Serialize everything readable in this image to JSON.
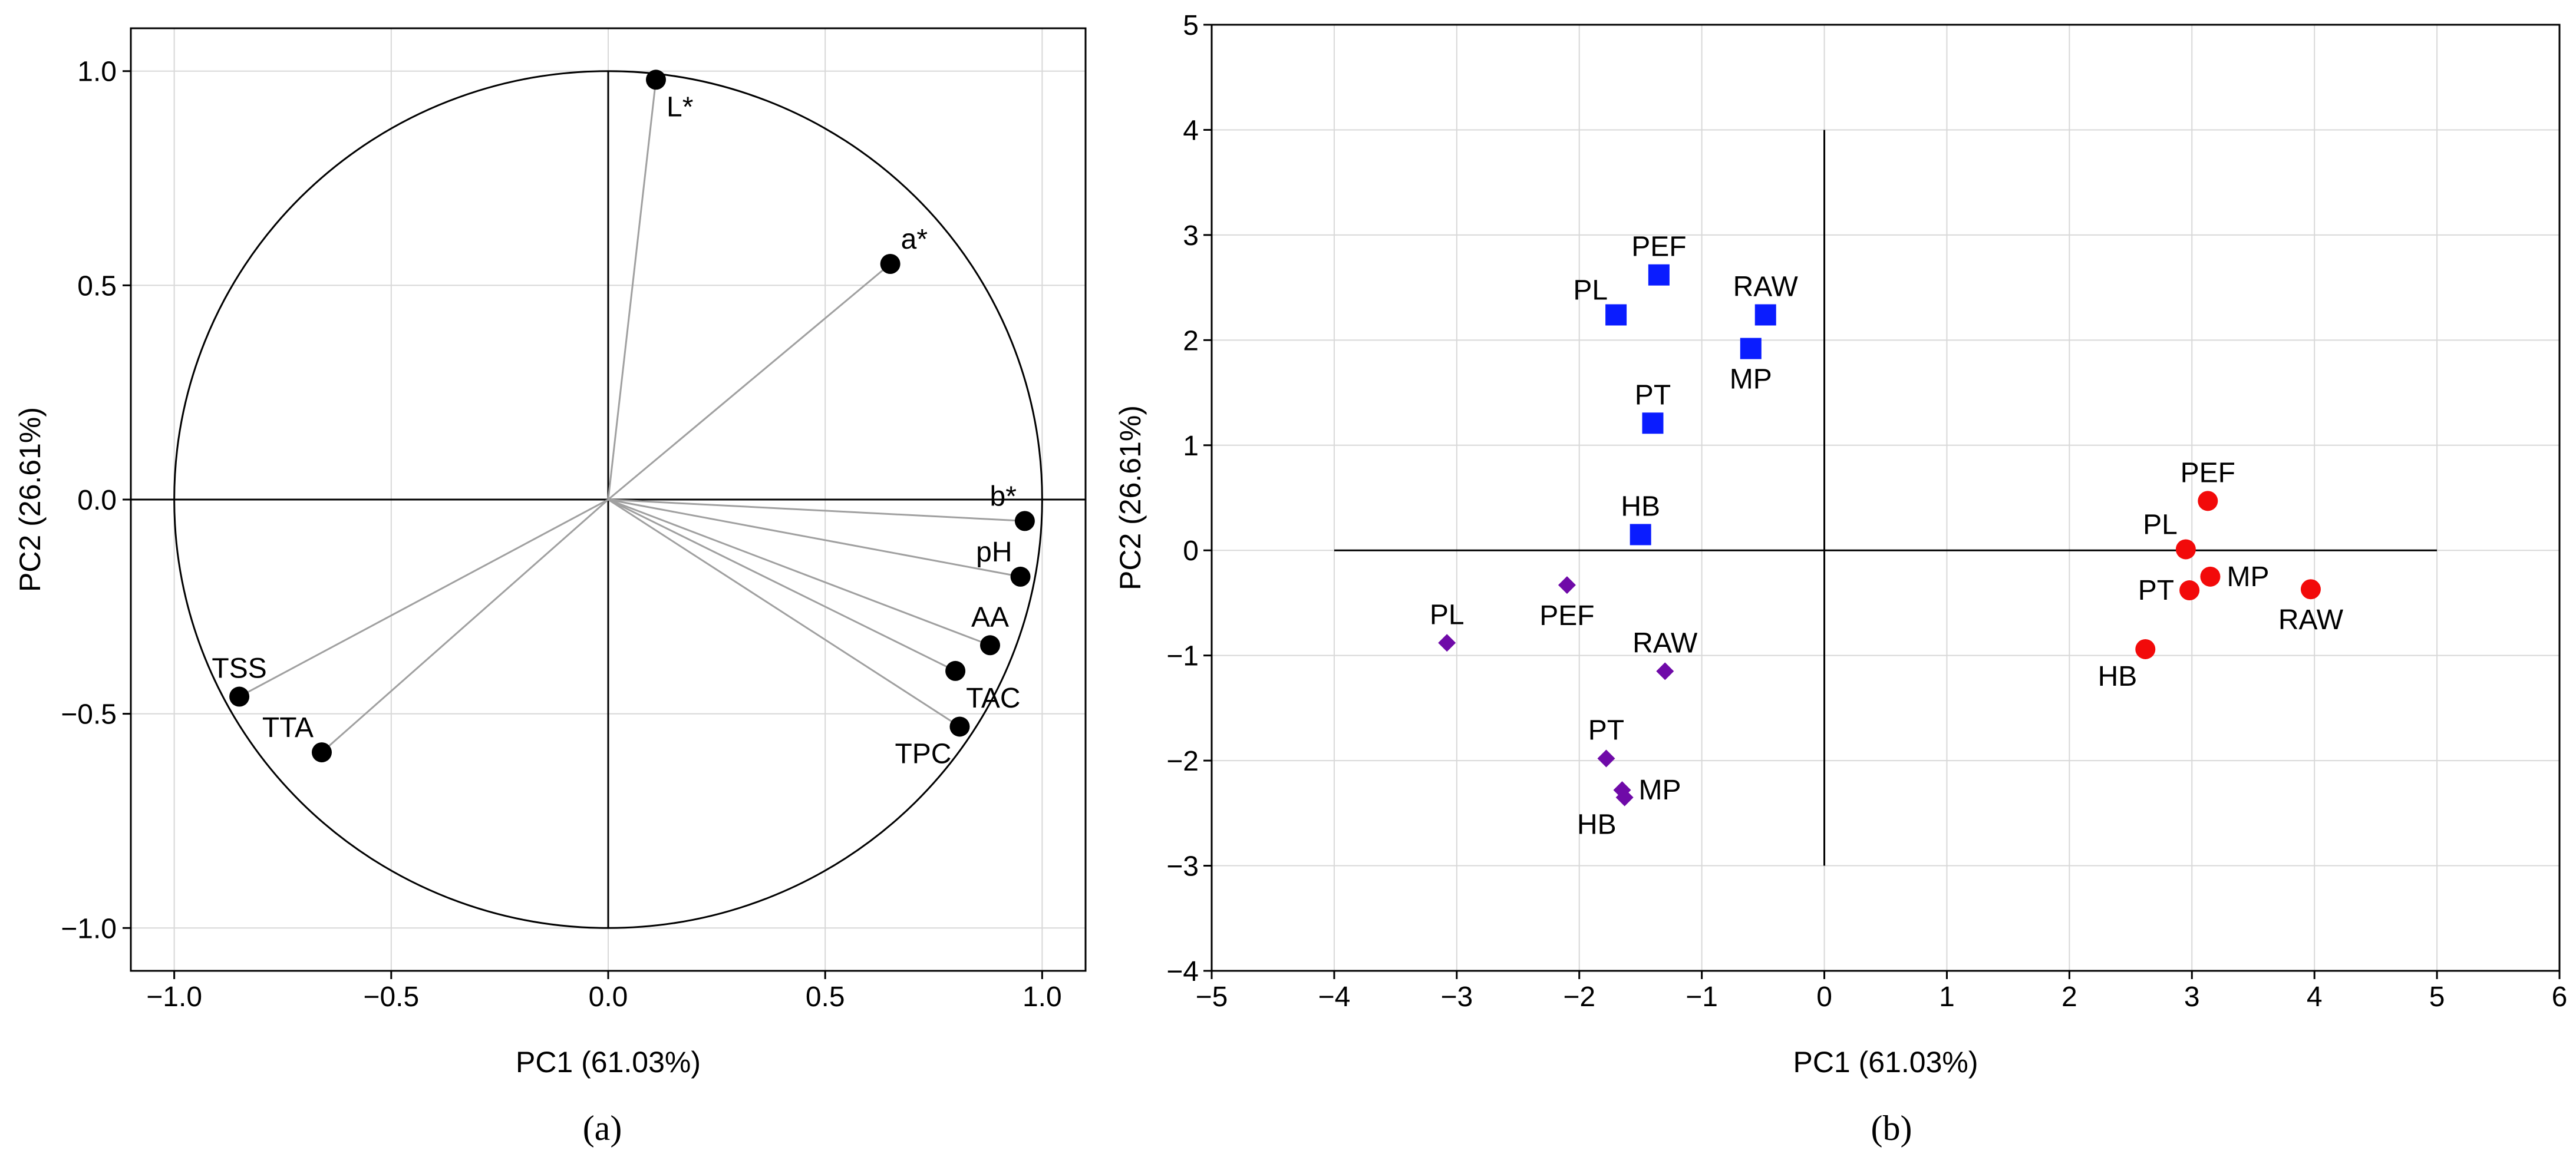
{
  "colors": {
    "frame": "#000000",
    "grid": "#d8d8d8",
    "loading_line": "#a0a0a0",
    "point_black": "#000000",
    "blue": "#0a1cff",
    "purple": "#6f0aa8",
    "red": "#f20a0a"
  },
  "chart_data": [
    {
      "type": "scatter",
      "subtype": "pca-loadings-correlation-circle",
      "panel_label": "(a)",
      "xlabel": "PC1 (61.03%)",
      "ylabel": "PC2 (26.61%)",
      "xlim": [
        -1.1,
        1.1
      ],
      "ylim": [
        -1.1,
        1.1
      ],
      "xticks": [
        -1.0,
        -0.5,
        0.0,
        0.5,
        1.0
      ],
      "yticks": [
        -1.0,
        -0.5,
        0.0,
        0.5,
        1.0
      ],
      "xtick_labels": [
        "−1.0",
        "−0.5",
        "0.0",
        "0.5",
        "1.0"
      ],
      "ytick_labels": [
        "−1.0",
        "−0.5",
        "0.0",
        "0.5",
        "1.0"
      ],
      "grid": true,
      "unit_circle": true,
      "points": [
        {
          "label": "L*",
          "x": 0.11,
          "y": 0.98,
          "label_pos": "bottom-right"
        },
        {
          "label": "a*",
          "x": 0.65,
          "y": 0.55,
          "label_pos": "top-right"
        },
        {
          "label": "b*",
          "x": 0.96,
          "y": -0.05,
          "label_pos": "top-left"
        },
        {
          "label": "pH",
          "x": 0.95,
          "y": -0.18,
          "label_pos": "top-left"
        },
        {
          "label": "AA",
          "x": 0.88,
          "y": -0.34,
          "label_pos": "top"
        },
        {
          "label": "TAC",
          "x": 0.8,
          "y": -0.4,
          "label_pos": "bottom-right"
        },
        {
          "label": "TPC",
          "x": 0.81,
          "y": -0.53,
          "label_pos": "bottom-left"
        },
        {
          "label": "TSS",
          "x": -0.85,
          "y": -0.46,
          "label_pos": "top"
        },
        {
          "label": "TTA",
          "x": -0.66,
          "y": -0.59,
          "label_pos": "top-left"
        }
      ]
    },
    {
      "type": "scatter",
      "subtype": "pca-scores",
      "panel_label": "(b)",
      "xlabel": "PC1 (61.03%)",
      "ylabel": "PC2 (26.61%)",
      "xlim": [
        -5,
        6
      ],
      "ylim": [
        -4,
        5
      ],
      "xticks": [
        -5,
        -4,
        -3,
        -2,
        -1,
        0,
        1,
        2,
        3,
        4,
        5,
        6
      ],
      "yticks": [
        -4,
        -3,
        -2,
        -1,
        0,
        1,
        2,
        3,
        4,
        5
      ],
      "xtick_labels": [
        "−5",
        "−4",
        "−3",
        "−2",
        "−1",
        "0",
        "1",
        "2",
        "3",
        "4",
        "5",
        "6"
      ],
      "ytick_labels": [
        "−4",
        "−3",
        "−2",
        "−1",
        "0",
        "1",
        "2",
        "3",
        "4",
        "5"
      ],
      "grid": true,
      "axis_lines": {
        "horizontal": {
          "y": 0,
          "from_x": -4,
          "to_x": 5
        },
        "vertical": {
          "x": 0,
          "from_y": -3,
          "to_y": 4
        }
      },
      "series": [
        {
          "name": "blue squares",
          "marker": "square",
          "color": "#0a1cff",
          "points": [
            {
              "label": "PEF",
              "x": -1.35,
              "y": 2.62,
              "label_pos": "top"
            },
            {
              "label": "PL",
              "x": -1.7,
              "y": 2.24,
              "label_pos": "top-left"
            },
            {
              "label": "RAW",
              "x": -0.48,
              "y": 2.24,
              "label_pos": "top"
            },
            {
              "label": "MP",
              "x": -0.6,
              "y": 1.92,
              "label_pos": "bottom"
            },
            {
              "label": "PT",
              "x": -1.4,
              "y": 1.21,
              "label_pos": "top"
            },
            {
              "label": "HB",
              "x": -1.5,
              "y": 0.15,
              "label_pos": "top"
            }
          ]
        },
        {
          "name": "purple diamonds",
          "marker": "diamond",
          "color": "#6f0aa8",
          "points": [
            {
              "label": "PEF",
              "x": -2.1,
              "y": -0.33,
              "label_pos": "bottom"
            },
            {
              "label": "PL",
              "x": -3.08,
              "y": -0.88,
              "label_pos": "top"
            },
            {
              "label": "RAW",
              "x": -1.3,
              "y": -1.15,
              "label_pos": "top"
            },
            {
              "label": "PT",
              "x": -1.78,
              "y": -1.98,
              "label_pos": "top"
            },
            {
              "label": "MP",
              "x": -1.65,
              "y": -2.28,
              "label_pos": "right"
            },
            {
              "label": "HB",
              "x": -1.63,
              "y": -2.35,
              "label_pos": "bottom-left"
            }
          ]
        },
        {
          "name": "red circles",
          "marker": "circle",
          "color": "#f20a0a",
          "points": [
            {
              "label": "PEF",
              "x": 3.13,
              "y": 0.47,
              "label_pos": "top"
            },
            {
              "label": "PL",
              "x": 2.95,
              "y": 0.01,
              "label_pos": "top-left"
            },
            {
              "label": "MP",
              "x": 3.15,
              "y": -0.25,
              "label_pos": "right"
            },
            {
              "label": "PT",
              "x": 2.98,
              "y": -0.38,
              "label_pos": "left"
            },
            {
              "label": "RAW",
              "x": 3.97,
              "y": -0.37,
              "label_pos": "bottom"
            },
            {
              "label": "HB",
              "x": 2.62,
              "y": -0.94,
              "label_pos": "bottom-left"
            }
          ]
        }
      ]
    }
  ]
}
